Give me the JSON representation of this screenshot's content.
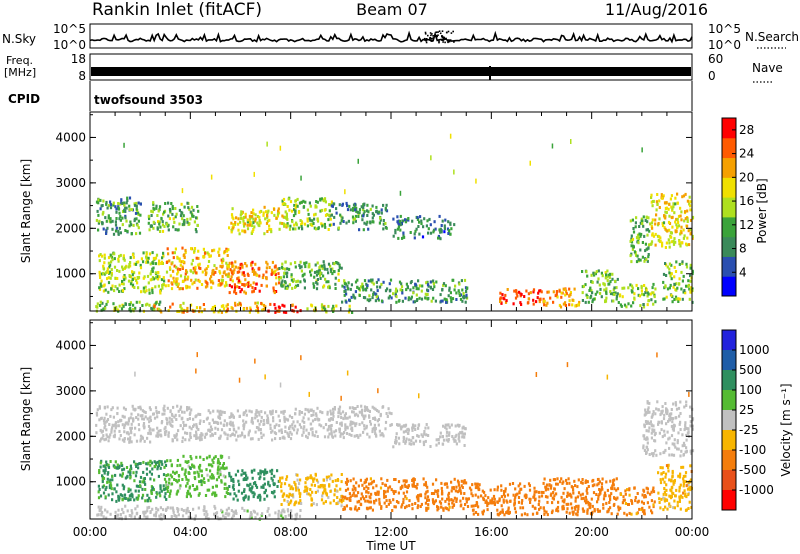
{
  "header": {
    "station": "Rankin Inlet (fitACF)",
    "beam": "Beam 07",
    "date": "11/Aug/2016"
  },
  "strips": {
    "nsky_label": "N.Sky",
    "nsky_ticks": [
      "10^5",
      "10^0"
    ],
    "nsearch_label": "N.Search",
    "freq_label_1": "Freq.",
    "freq_label_2": "[MHz]",
    "freq_ticks": [
      "18",
      "8"
    ],
    "nave_ticks": [
      "60",
      "0"
    ],
    "nave_label": "Nave",
    "cpid_label": "CPID",
    "cpid_value": "twofsound 3503"
  },
  "colors": {
    "power_scale": [
      "#0000ff",
      "#2a4fb0",
      "#3a8a5a",
      "#3aa33a",
      "#aee01f",
      "#f0e000",
      "#f5a000",
      "#ff5a00",
      "#ff0000"
    ],
    "velocity_scale": [
      "#2222dd",
      "#1f5ea8",
      "#2f8f5f",
      "#55bb33",
      "#c0c0c0",
      "#f7b500",
      "#f47d0c",
      "#e8501a",
      "#ff0000"
    ]
  },
  "chart_data": [
    {
      "type": "heatmap",
      "title": "",
      "quantity": "Power",
      "ylabel": "Slant Range [km]",
      "ylim": [
        180,
        4560
      ],
      "yticks": [
        "1000",
        "2000",
        "3000",
        "4000"
      ],
      "xlabel": "",
      "xlim_hours": [
        0,
        24
      ],
      "colorbar_label": "Power [dB]",
      "colorbar_ticks": [
        "4",
        "8",
        "12",
        "16",
        "20",
        "24",
        "28"
      ],
      "colorbar_range": [
        0,
        30
      ],
      "grid": false,
      "blobs": [
        {
          "t0": 0.2,
          "t1": 2.8,
          "r0": 200,
          "r1": 420,
          "v": 14
        },
        {
          "t0": 2.5,
          "t1": 7.0,
          "r0": 180,
          "r1": 400,
          "v": 20
        },
        {
          "t0": 7.0,
          "t1": 8.5,
          "r0": 180,
          "r1": 380,
          "v": 28
        },
        {
          "t0": 8.5,
          "t1": 10.5,
          "r0": 180,
          "r1": 350,
          "v": 16
        },
        {
          "t0": 0.2,
          "t1": 2.0,
          "r0": 1900,
          "r1": 2700,
          "v": 10
        },
        {
          "t0": 2.3,
          "t1": 4.3,
          "r0": 1950,
          "r1": 2600,
          "v": 12
        },
        {
          "t0": 5.5,
          "t1": 7.8,
          "r0": 1900,
          "r1": 2500,
          "v": 18
        },
        {
          "t0": 7.6,
          "t1": 9.6,
          "r0": 2000,
          "r1": 2700,
          "v": 14
        },
        {
          "t0": 9.6,
          "t1": 11.8,
          "r0": 2000,
          "r1": 2600,
          "v": 9
        },
        {
          "t0": 12.0,
          "t1": 14.5,
          "r0": 1800,
          "r1": 2300,
          "v": 8
        },
        {
          "t0": 0.3,
          "t1": 3.0,
          "r0": 600,
          "r1": 1500,
          "v": 15
        },
        {
          "t0": 3.0,
          "t1": 5.5,
          "r0": 700,
          "r1": 1600,
          "v": 20
        },
        {
          "t0": 5.5,
          "t1": 7.5,
          "r0": 600,
          "r1": 1300,
          "v": 24
        },
        {
          "t0": 7.5,
          "t1": 10.0,
          "r0": 700,
          "r1": 1300,
          "v": 12
        },
        {
          "t0": 10.0,
          "t1": 15.0,
          "r0": 400,
          "r1": 900,
          "v": 10
        },
        {
          "t0": 16.3,
          "t1": 18.0,
          "r0": 350,
          "r1": 700,
          "v": 26
        },
        {
          "t0": 18.0,
          "t1": 19.5,
          "r0": 300,
          "r1": 700,
          "v": 22
        },
        {
          "t0": 19.5,
          "t1": 21.0,
          "r0": 400,
          "r1": 1100,
          "v": 12
        },
        {
          "t0": 21.0,
          "t1": 22.5,
          "r0": 300,
          "r1": 800,
          "v": 14
        },
        {
          "t0": 21.5,
          "t1": 22.3,
          "r0": 1300,
          "r1": 2300,
          "v": 12
        },
        {
          "t0": 22.3,
          "t1": 24.0,
          "r0": 1600,
          "r1": 2800,
          "v": 18
        },
        {
          "t0": 22.8,
          "t1": 24.0,
          "r0": 400,
          "r1": 1300,
          "v": 14
        }
      ]
    },
    {
      "type": "heatmap",
      "title": "",
      "quantity": "Velocity",
      "ylabel": "Slant Range [km]",
      "ylim": [
        180,
        4560
      ],
      "yticks": [
        "1000",
        "2000",
        "3000",
        "4000"
      ],
      "xlabel": "Time UT",
      "xlim_hours": [
        0,
        24
      ],
      "xticks": [
        "00:00",
        "04:00",
        "08:00",
        "12:00",
        "16:00",
        "20:00",
        "00:00"
      ],
      "colorbar_label": "Velocity [m s⁻¹]",
      "colorbar_ticks": [
        "1000",
        "500",
        "100",
        "25",
        "-25",
        "-100",
        "-500",
        "-1000"
      ],
      "grid": false,
      "blobs": [
        {
          "t0": 0.2,
          "t1": 4.0,
          "r0": 1900,
          "r1": 2700,
          "v": 0
        },
        {
          "t0": 4.0,
          "t1": 8.0,
          "r0": 1950,
          "r1": 2600,
          "v": 0
        },
        {
          "t0": 8.0,
          "t1": 12.0,
          "r0": 2000,
          "r1": 2700,
          "v": 0
        },
        {
          "t0": 12.0,
          "t1": 15.0,
          "r0": 1800,
          "r1": 2300,
          "v": 0
        },
        {
          "t0": 0.3,
          "t1": 3.0,
          "r0": 600,
          "r1": 1500,
          "v": 120
        },
        {
          "t0": 3.0,
          "t1": 5.5,
          "r0": 700,
          "r1": 1600,
          "v": 60
        },
        {
          "t0": 5.5,
          "t1": 7.5,
          "r0": 600,
          "r1": 1300,
          "v": 300
        },
        {
          "t0": 7.5,
          "t1": 10.0,
          "r0": 500,
          "r1": 1200,
          "v": -40
        },
        {
          "t0": 0.2,
          "t1": 5.0,
          "r0": 200,
          "r1": 500,
          "v": 0
        },
        {
          "t0": 5.0,
          "t1": 8.5,
          "r0": 200,
          "r1": 450,
          "v": 10
        },
        {
          "t0": 10.0,
          "t1": 15.0,
          "r0": 400,
          "r1": 1100,
          "v": -200
        },
        {
          "t0": 15.0,
          "t1": 18.0,
          "r0": 300,
          "r1": 1000,
          "v": -300
        },
        {
          "t0": 18.0,
          "t1": 21.0,
          "r0": 300,
          "r1": 1100,
          "v": -250
        },
        {
          "t0": 21.0,
          "t1": 22.5,
          "r0": 300,
          "r1": 900,
          "v": -150
        },
        {
          "t0": 22.0,
          "t1": 24.0,
          "r0": 1600,
          "r1": 2800,
          "v": 0
        },
        {
          "t0": 22.6,
          "t1": 24.0,
          "r0": 400,
          "r1": 1400,
          "v": -60
        }
      ]
    }
  ]
}
